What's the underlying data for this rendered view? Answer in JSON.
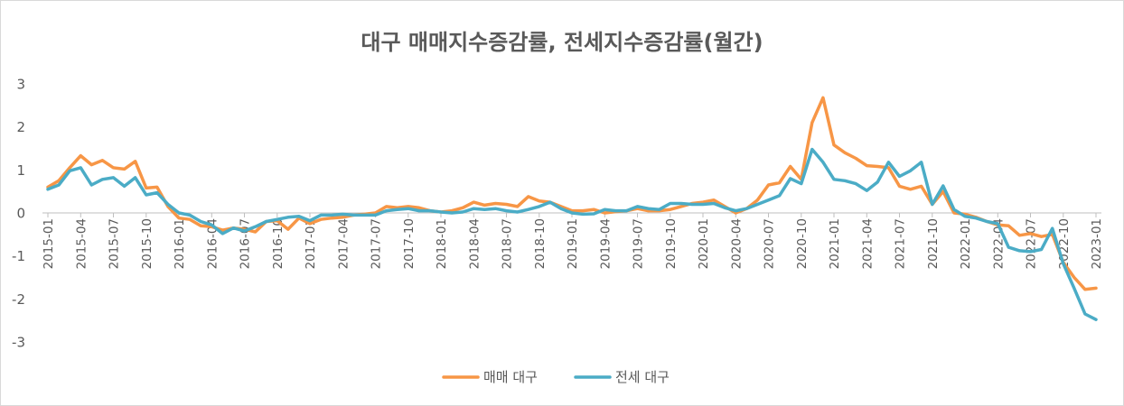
{
  "style": {
    "text_color": "#595959",
    "axis_color": "#BFBFBF",
    "frame_color": "#D9D9D9",
    "background": "#FFFFFF"
  },
  "chart_data": {
    "type": "line",
    "title": "대구 매매지수증감률, 전세지수증감률(월간)",
    "x": [
      "2015-01",
      "2015-02",
      "2015-03",
      "2015-04",
      "2015-05",
      "2015-06",
      "2015-07",
      "2015-08",
      "2015-09",
      "2015-10",
      "2015-11",
      "2015-12",
      "2016-01",
      "2016-02",
      "2016-03",
      "2016-04",
      "2016-05",
      "2016-06",
      "2016-07",
      "2016-08",
      "2016-09",
      "2016-10",
      "2016-11",
      "2016-12",
      "2017-01",
      "2017-02",
      "2017-03",
      "2017-04",
      "2017-05",
      "2017-06",
      "2017-07",
      "2017-08",
      "2017-09",
      "2017-10",
      "2017-11",
      "2017-12",
      "2018-01",
      "2018-02",
      "2018-03",
      "2018-04",
      "2018-05",
      "2018-06",
      "2018-07",
      "2018-08",
      "2018-09",
      "2018-10",
      "2018-11",
      "2018-12",
      "2019-01",
      "2019-02",
      "2019-03",
      "2019-04",
      "2019-05",
      "2019-06",
      "2019-07",
      "2019-08",
      "2019-09",
      "2019-10",
      "2019-11",
      "2019-12",
      "2020-01",
      "2020-02",
      "2020-03",
      "2020-04",
      "2020-05",
      "2020-06",
      "2020-07",
      "2020-08",
      "2020-09",
      "2020-10",
      "2020-11",
      "2020-12",
      "2021-01",
      "2021-02",
      "2021-03",
      "2021-04",
      "2021-05",
      "2021-06",
      "2021-07",
      "2021-08",
      "2021-09",
      "2021-10",
      "2021-11",
      "2021-12",
      "2022-01",
      "2022-02",
      "2022-03",
      "2022-04",
      "2022-05",
      "2022-06",
      "2022-07",
      "2022-08",
      "2022-09",
      "2022-10",
      "2022-11",
      "2022-12",
      "2023-01"
    ],
    "x_tick_labels": [
      "2015-01",
      "2015-04",
      "2015-07",
      "2015-10",
      "2016-01",
      "2016-04",
      "2016-07",
      "2016-10",
      "2017-01",
      "2017-04",
      "2017-07",
      "2017-10",
      "2018-01",
      "2018-04",
      "2018-07",
      "2018-10",
      "2019-01",
      "2019-04",
      "2019-07",
      "2019-10",
      "2020-01",
      "2020-04",
      "2020-07",
      "2020-10",
      "2021-01",
      "2021-04",
      "2021-07",
      "2021-10",
      "2022-01",
      "2022-04",
      "2022-07",
      "2022-10",
      "2023-01"
    ],
    "y_ticks": [
      3,
      2,
      1,
      0,
      -1,
      -2,
      -3
    ],
    "ylim": [
      -3,
      3
    ],
    "grid": false,
    "legend_position": "bottom",
    "series": [
      {
        "name": "매매 대구",
        "color": "#F79646",
        "values": [
          0.6,
          0.75,
          1.05,
          1.33,
          1.12,
          1.22,
          1.05,
          1.02,
          1.2,
          0.58,
          0.6,
          0.15,
          -0.12,
          -0.15,
          -0.3,
          -0.32,
          -0.4,
          -0.35,
          -0.38,
          -0.44,
          -0.2,
          -0.18,
          -0.38,
          -0.12,
          -0.25,
          -0.15,
          -0.12,
          -0.1,
          -0.05,
          -0.03,
          0.0,
          0.15,
          0.12,
          0.15,
          0.12,
          0.05,
          0.02,
          0.05,
          0.12,
          0.25,
          0.18,
          0.22,
          0.2,
          0.15,
          0.38,
          0.28,
          0.25,
          0.15,
          0.05,
          0.05,
          0.08,
          0.0,
          0.03,
          0.05,
          0.1,
          0.05,
          0.05,
          0.08,
          0.15,
          0.22,
          0.25,
          0.3,
          0.15,
          0.0,
          0.1,
          0.3,
          0.65,
          0.7,
          1.08,
          0.78,
          2.1,
          2.68,
          1.58,
          1.4,
          1.27,
          1.1,
          1.08,
          1.05,
          0.62,
          0.55,
          0.62,
          0.2,
          0.5,
          0.0,
          -0.03,
          -0.1,
          -0.2,
          -0.28,
          -0.3,
          -0.52,
          -0.48,
          -0.55,
          -0.5,
          -1.15,
          -1.5,
          -1.78,
          -1.75
        ]
      },
      {
        "name": "전세 대구",
        "color": "#4BACC6",
        "values": [
          0.55,
          0.65,
          0.98,
          1.05,
          0.65,
          0.78,
          0.82,
          0.62,
          0.82,
          0.42,
          0.47,
          0.2,
          0.0,
          -0.05,
          -0.2,
          -0.28,
          -0.48,
          -0.35,
          -0.42,
          -0.32,
          -0.2,
          -0.15,
          -0.1,
          -0.08,
          -0.18,
          -0.05,
          -0.05,
          -0.03,
          -0.05,
          -0.05,
          -0.05,
          0.05,
          0.08,
          0.1,
          0.05,
          0.05,
          0.02,
          0.0,
          0.02,
          0.1,
          0.08,
          0.1,
          0.05,
          0.02,
          0.08,
          0.15,
          0.25,
          0.1,
          0.0,
          -0.03,
          -0.02,
          0.08,
          0.05,
          0.05,
          0.15,
          0.1,
          0.08,
          0.22,
          0.22,
          0.2,
          0.2,
          0.22,
          0.12,
          0.05,
          0.1,
          0.2,
          0.3,
          0.4,
          0.8,
          0.68,
          1.48,
          1.18,
          0.78,
          0.75,
          0.68,
          0.52,
          0.72,
          1.18,
          0.85,
          0.98,
          1.18,
          0.2,
          0.63,
          0.08,
          -0.08,
          -0.12,
          -0.2,
          -0.25,
          -0.8,
          -0.88,
          -0.9,
          -0.85,
          -0.36,
          -1.18,
          -1.75,
          -2.35,
          -2.48
        ]
      }
    ]
  }
}
